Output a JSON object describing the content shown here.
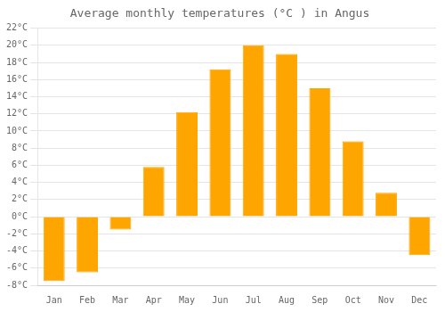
{
  "chart_data": {
    "type": "bar",
    "title": "Average monthly temperatures (°C ) in Angus",
    "categories": [
      "Jan",
      "Feb",
      "Mar",
      "Apr",
      "May",
      "Jun",
      "Jul",
      "Aug",
      "Sep",
      "Oct",
      "Nov",
      "Dec"
    ],
    "values": [
      -7.5,
      -6.5,
      -1.5,
      5.8,
      12.2,
      17.2,
      20.0,
      19.0,
      15.0,
      8.8,
      2.8,
      -4.5
    ],
    "color": "#FFA500",
    "ylim": [
      -8,
      22
    ],
    "yticks": [
      {
        "value": -8,
        "label": "-8°C"
      },
      {
        "value": -6,
        "label": "-6°C"
      },
      {
        "value": -4,
        "label": "-4°C"
      },
      {
        "value": -2,
        "label": "-2°C"
      },
      {
        "value": 0,
        "label": "0°C"
      },
      {
        "value": 2,
        "label": "2°C"
      },
      {
        "value": 4,
        "label": "4°C"
      },
      {
        "value": 6,
        "label": "6°C"
      },
      {
        "value": 8,
        "label": "8°C"
      },
      {
        "value": 10,
        "label": "10°C"
      },
      {
        "value": 12,
        "label": "12°C"
      },
      {
        "value": 14,
        "label": "14°C"
      },
      {
        "value": 16,
        "label": "16°C"
      },
      {
        "value": 18,
        "label": "18°C"
      },
      {
        "value": 20,
        "label": "20°C"
      },
      {
        "value": 22,
        "label": "22°C"
      }
    ],
    "grid": true
  }
}
